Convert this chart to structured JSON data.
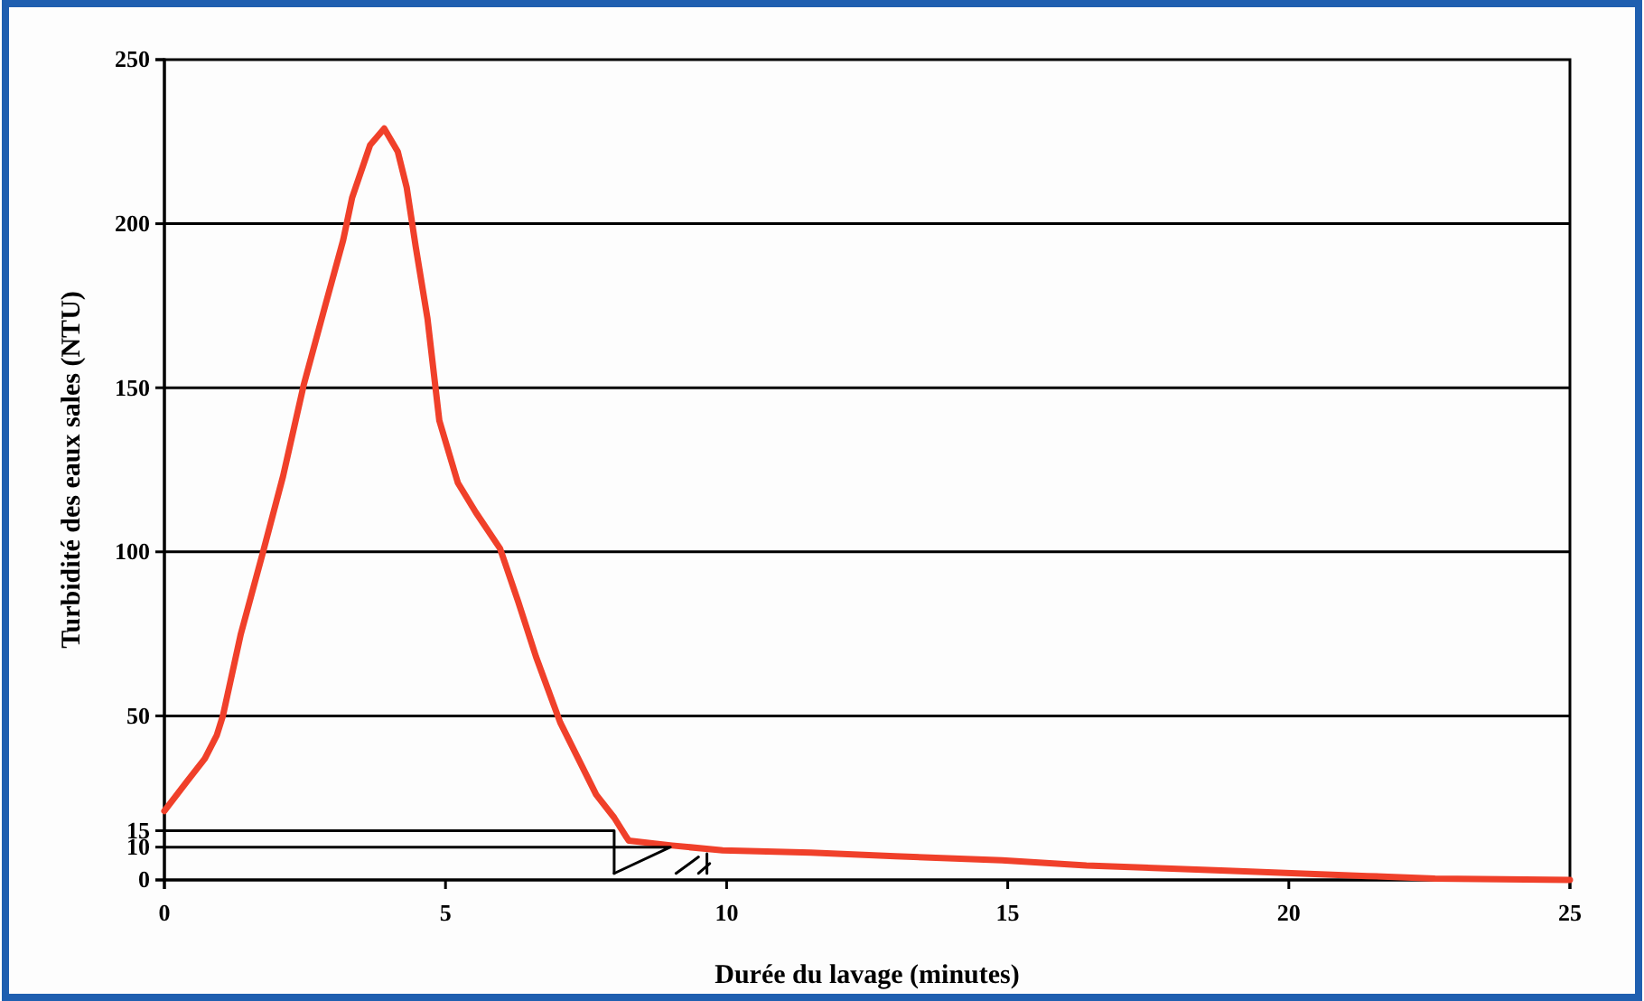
{
  "chart_data": {
    "type": "line",
    "xlabel": "Durée du lavage (minutes)",
    "ylabel": "Turbidité des eaux sales (NTU)",
    "xlim": [
      0,
      25
    ],
    "ylim": [
      0,
      250
    ],
    "xticks": [
      0,
      5,
      10,
      15,
      20,
      25
    ],
    "yticks": [
      0,
      10,
      15,
      50,
      100,
      150,
      200,
      250
    ],
    "grid": false,
    "line_style": "solid",
    "marker": "none",
    "ref_lines": [
      {
        "axis": "y",
        "value": 50,
        "color": "#000000"
      },
      {
        "axis": "y",
        "value": 100,
        "color": "#000000"
      },
      {
        "axis": "y",
        "value": 150,
        "color": "#000000"
      },
      {
        "axis": "y",
        "value": 200,
        "color": "#000000"
      }
    ],
    "series": [
      {
        "color": "#f0402a",
        "x": [
          0,
          0.4,
          0.72,
          0.93,
          1.04,
          1.36,
          1.74,
          2.11,
          2.48,
          2.86,
          3.18,
          3.34,
          3.66,
          3.91,
          4.15,
          4.31,
          4.47,
          4.68,
          4.89,
          5.22,
          5.54,
          5.97,
          6.29,
          6.61,
          7.04,
          7.36,
          7.68,
          8.0,
          8.22,
          8.26,
          9.03,
          9.93,
          11.5,
          13,
          14.9,
          16.4,
          18.9,
          21.4,
          22.6,
          25
        ],
        "values": [
          21,
          30,
          37,
          44,
          50,
          75,
          99,
          123,
          151,
          175,
          195,
          208,
          224,
          229,
          222,
          211,
          193,
          171,
          140,
          121,
          112,
          101,
          85,
          68,
          48,
          37,
          26,
          19,
          13,
          12,
          10.5,
          9,
          8.3,
          7.2,
          6,
          4.4,
          2.8,
          1.2,
          0.4,
          0
        ]
      },
      {
        "color": "#000000",
        "x": [
          0,
          8,
          8
        ],
        "values": [
          15,
          15,
          2
        ]
      },
      {
        "color": "#000000",
        "x": [
          0,
          9,
          8
        ],
        "values": [
          10,
          10,
          2
        ]
      },
      {
        "color": "#000000",
        "x": [
          9.1,
          9.5
        ],
        "values": [
          2,
          7
        ]
      },
      {
        "color": "#000000",
        "x": [
          9.5,
          9.7
        ],
        "values": [
          2,
          5
        ]
      },
      {
        "color": "#000000",
        "x": [
          9.65,
          9.65
        ],
        "values": [
          2,
          8
        ]
      }
    ]
  }
}
